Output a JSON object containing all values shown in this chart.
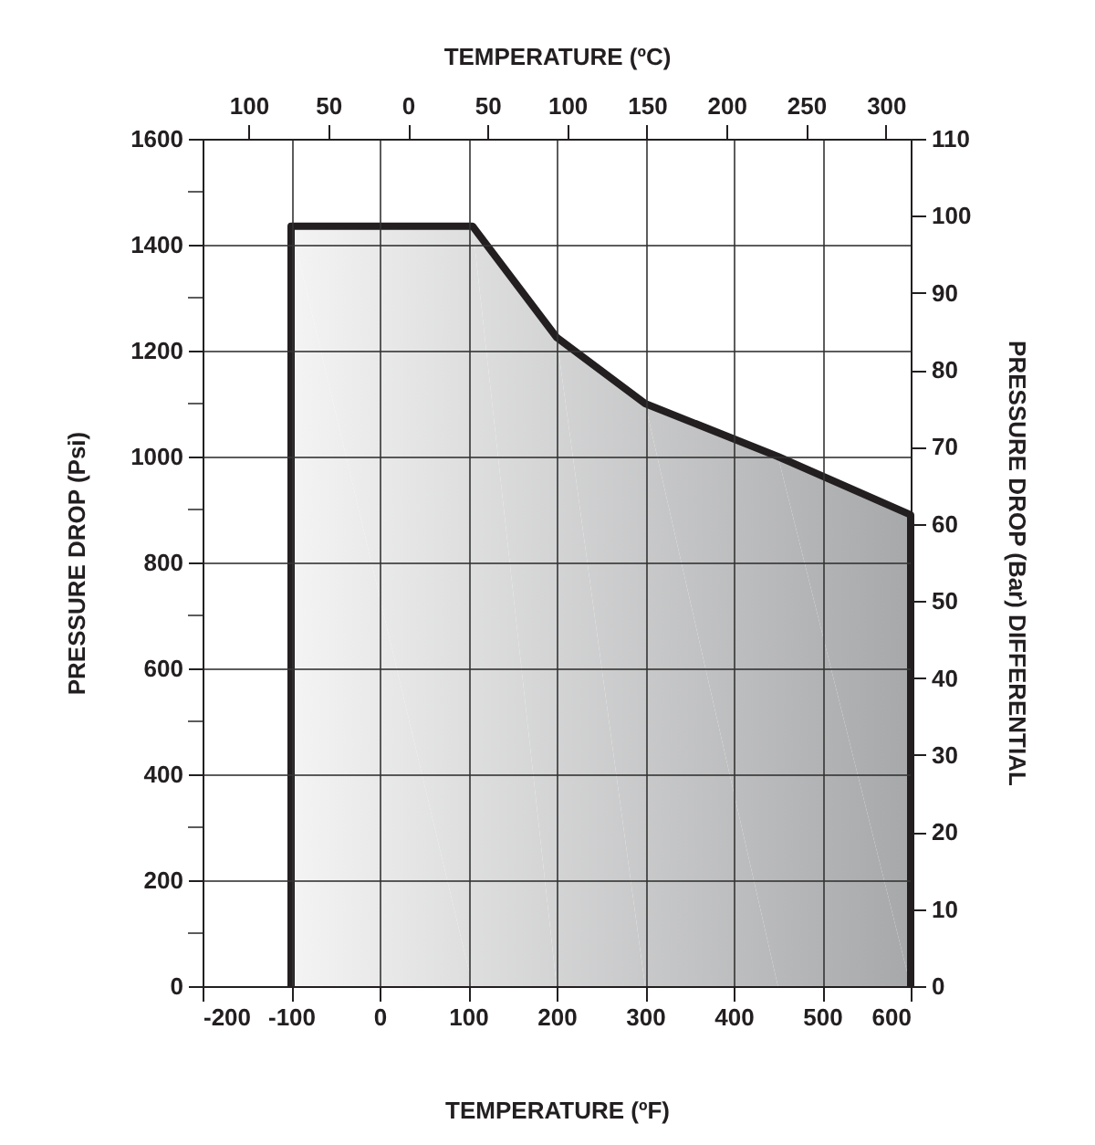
{
  "chart_data": {
    "type": "area",
    "xlabel": "TEMPERATURE (ºF)",
    "ylabel": "PRESSURE DROP (Psi)",
    "y2label": "PRESSURE DROP (Bar) DIFFERENTIAL",
    "x2label": "TEMPERATURE (ºC)",
    "series": [
      {
        "color": "#a7a8aa",
        "x": [
          -100,
          -100,
          105,
          200,
          300,
          450,
          600,
          600
        ],
        "values": [
          0,
          1435,
          1435,
          1225,
          1100,
          1000,
          890,
          0
        ]
      }
    ],
    "xlim": [
      -200,
      600
    ],
    "xticks": [
      -200,
      -100,
      0,
      100,
      200,
      300,
      400,
      500,
      600
    ],
    "ylim": [
      0,
      1600
    ],
    "yticks": [
      0,
      {
        "value": 100,
        "label": null
      },
      200,
      {
        "value": 300,
        "label": null
      },
      400,
      {
        "value": 500,
        "label": null
      },
      600,
      {
        "value": 700,
        "label": null
      },
      800,
      {
        "value": 900,
        "label": null
      },
      1000,
      {
        "value": 1100,
        "label": null
      },
      1200,
      {
        "value": 1300,
        "label": null
      },
      1400,
      {
        "value": 1500,
        "label": null
      },
      1600
    ],
    "y2lim": [
      0,
      110
    ],
    "y2ticks": [
      0,
      10,
      20,
      30,
      40,
      50,
      60,
      70,
      80,
      90,
      100,
      110
    ],
    "x2lim": [
      -128.89,
      315.56
    ],
    "x2ticks": [
      {
        "value": -100,
        "label": "100"
      },
      {
        "value": -50,
        "label": "50"
      },
      0,
      50,
      100,
      150,
      200,
      250,
      300
    ],
    "grid": true
  }
}
